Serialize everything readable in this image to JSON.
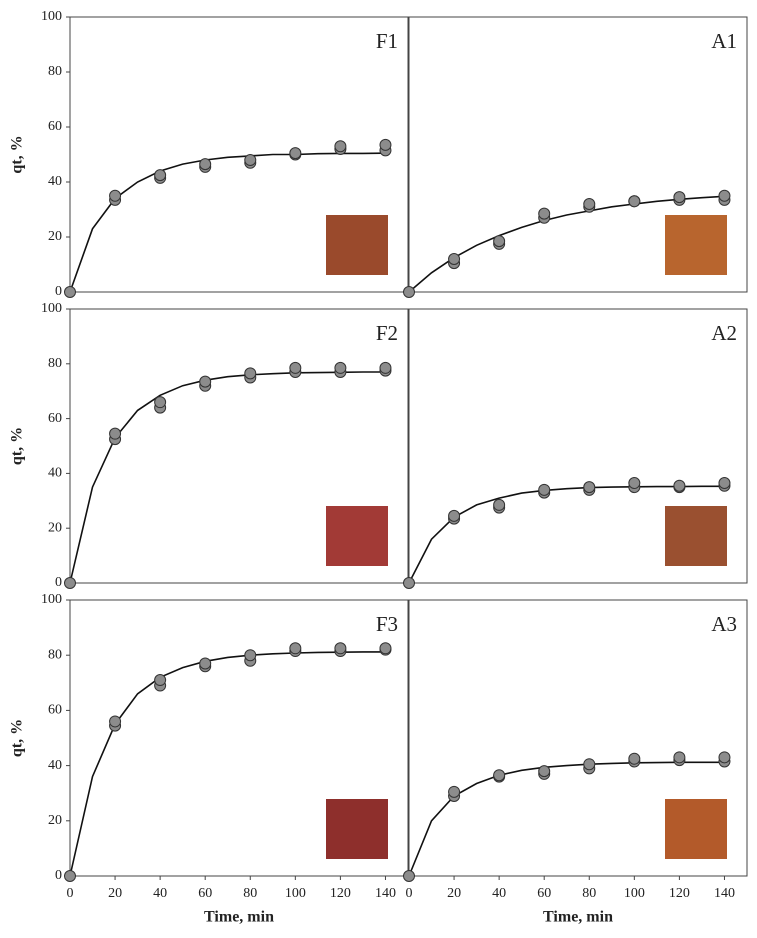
{
  "chart_data": [
    {
      "type": "scatter",
      "label": "F1",
      "x": [
        0,
        20,
        20,
        40,
        40,
        60,
        60,
        80,
        80,
        100,
        100,
        120,
        120,
        140,
        140
      ],
      "y": [
        0,
        33.5,
        35,
        41.5,
        42.5,
        45.5,
        46.5,
        47,
        48,
        50,
        50.5,
        52,
        53,
        51.5,
        53.5
      ],
      "fit": {
        "x": [
          0,
          10,
          20,
          30,
          40,
          50,
          60,
          70,
          80,
          90,
          100,
          110,
          120,
          130,
          140
        ],
        "y": [
          0,
          23,
          34,
          40,
          44,
          46.5,
          48,
          49,
          49.5,
          50,
          50,
          50.3,
          50.4,
          50.4,
          50.5
        ]
      },
      "xlim": [
        0,
        150
      ],
      "ylim": [
        0,
        100
      ],
      "yticks": [
        0,
        20,
        40,
        60,
        80,
        100
      ],
      "ylabel": "qt, %",
      "marker_color": "#8c8c8c",
      "line_color": "#111111",
      "swatch_color": "#9a4a2c"
    },
    {
      "type": "scatter",
      "label": "A1",
      "x": [
        0,
        20,
        20,
        40,
        40,
        60,
        60,
        80,
        80,
        100,
        100,
        120,
        120,
        140,
        140
      ],
      "y": [
        0,
        10.5,
        12,
        17.5,
        18.5,
        27,
        28.5,
        31,
        32,
        33,
        33,
        33.5,
        34.5,
        33.5,
        35
      ],
      "fit": {
        "x": [
          0,
          10,
          20,
          30,
          40,
          50,
          60,
          70,
          80,
          90,
          100,
          110,
          120,
          130,
          140
        ],
        "y": [
          0,
          7,
          12.5,
          17,
          20.5,
          23.5,
          26,
          28,
          29.5,
          31,
          32,
          33,
          33.7,
          34.3,
          34.8
        ]
      },
      "xlim": [
        0,
        150
      ],
      "ylim": [
        0,
        100
      ],
      "marker_color": "#8c8c8c",
      "line_color": "#111111",
      "swatch_color": "#b8652e"
    },
    {
      "type": "scatter",
      "label": "F2",
      "x": [
        0,
        20,
        20,
        40,
        40,
        60,
        60,
        80,
        80,
        100,
        100,
        120,
        120,
        140,
        140
      ],
      "y": [
        0,
        52.5,
        54.5,
        64,
        66,
        72,
        73.5,
        75,
        76.5,
        77,
        78.5,
        77,
        78.5,
        77.5,
        78.5
      ],
      "fit": {
        "x": [
          0,
          10,
          20,
          30,
          40,
          50,
          60,
          70,
          80,
          90,
          100,
          110,
          120,
          130,
          140
        ],
        "y": [
          0,
          35,
          53,
          63,
          68.5,
          72,
          74,
          75.3,
          76,
          76.4,
          76.7,
          76.8,
          76.9,
          77,
          77
        ]
      },
      "xlim": [
        0,
        150
      ],
      "ylim": [
        0,
        100
      ],
      "yticks": [
        0,
        20,
        40,
        60,
        80,
        100
      ],
      "ylabel": "qt, %",
      "marker_color": "#8c8c8c",
      "line_color": "#111111",
      "swatch_color": "#a23a36"
    },
    {
      "type": "scatter",
      "label": "A2",
      "x": [
        0,
        20,
        20,
        40,
        40,
        60,
        60,
        80,
        80,
        100,
        100,
        120,
        120,
        140,
        140
      ],
      "y": [
        0,
        23.5,
        24.5,
        27.5,
        28.5,
        33,
        34,
        34,
        35,
        35,
        36.5,
        35,
        35.5,
        35.5,
        36.5
      ],
      "fit": {
        "x": [
          0,
          10,
          20,
          30,
          40,
          50,
          60,
          70,
          80,
          90,
          100,
          110,
          120,
          130,
          140
        ],
        "y": [
          0,
          16,
          24,
          28.5,
          31,
          32.8,
          33.8,
          34.4,
          34.8,
          35,
          35.1,
          35.2,
          35.2,
          35.3,
          35.3
        ]
      },
      "xlim": [
        0,
        150
      ],
      "ylim": [
        0,
        100
      ],
      "marker_color": "#8c8c8c",
      "line_color": "#111111",
      "swatch_color": "#9a5030"
    },
    {
      "type": "scatter",
      "label": "F3",
      "x": [
        0,
        20,
        20,
        40,
        40,
        60,
        60,
        80,
        80,
        100,
        100,
        120,
        120,
        140,
        140
      ],
      "y": [
        0,
        54.5,
        56,
        69,
        71,
        76,
        77,
        78,
        80,
        81.5,
        82.5,
        81.5,
        82.5,
        82,
        82.5
      ],
      "fit": {
        "x": [
          0,
          10,
          20,
          30,
          40,
          50,
          60,
          70,
          80,
          90,
          100,
          110,
          120,
          130,
          140
        ],
        "y": [
          0,
          36,
          55,
          66,
          72,
          75.5,
          77.8,
          79.2,
          80,
          80.5,
          80.8,
          81,
          81.1,
          81.2,
          81.2
        ]
      },
      "xlim": [
        0,
        150
      ],
      "ylim": [
        0,
        100
      ],
      "yticks": [
        0,
        20,
        40,
        60,
        80,
        100
      ],
      "xticks": [
        0,
        20,
        40,
        60,
        80,
        100,
        120,
        140
      ],
      "xlabel": "Time, min",
      "ylabel": "qt, %",
      "marker_color": "#8c8c8c",
      "line_color": "#111111",
      "swatch_color": "#8e2f2c"
    },
    {
      "type": "scatter",
      "label": "A3",
      "x": [
        0,
        20,
        20,
        40,
        40,
        60,
        60,
        80,
        80,
        100,
        100,
        120,
        120,
        140,
        140
      ],
      "y": [
        0,
        29,
        30.5,
        36,
        36.5,
        37,
        38,
        39,
        40.5,
        41.5,
        42.5,
        42,
        43,
        41.5,
        43
      ],
      "fit": {
        "x": [
          0,
          10,
          20,
          30,
          40,
          50,
          60,
          70,
          80,
          90,
          100,
          110,
          120,
          130,
          140
        ],
        "y": [
          0,
          20,
          29,
          33.5,
          36.5,
          38.3,
          39.4,
          40,
          40.5,
          40.8,
          41,
          41.1,
          41.2,
          41.2,
          41.2
        ]
      },
      "xlim": [
        0,
        150
      ],
      "ylim": [
        0,
        100
      ],
      "xticks": [
        0,
        20,
        40,
        60,
        80,
        100,
        120,
        140
      ],
      "xlabel": "Time, min",
      "marker_color": "#8c8c8c",
      "line_color": "#111111",
      "swatch_color": "#b35a2a"
    }
  ]
}
